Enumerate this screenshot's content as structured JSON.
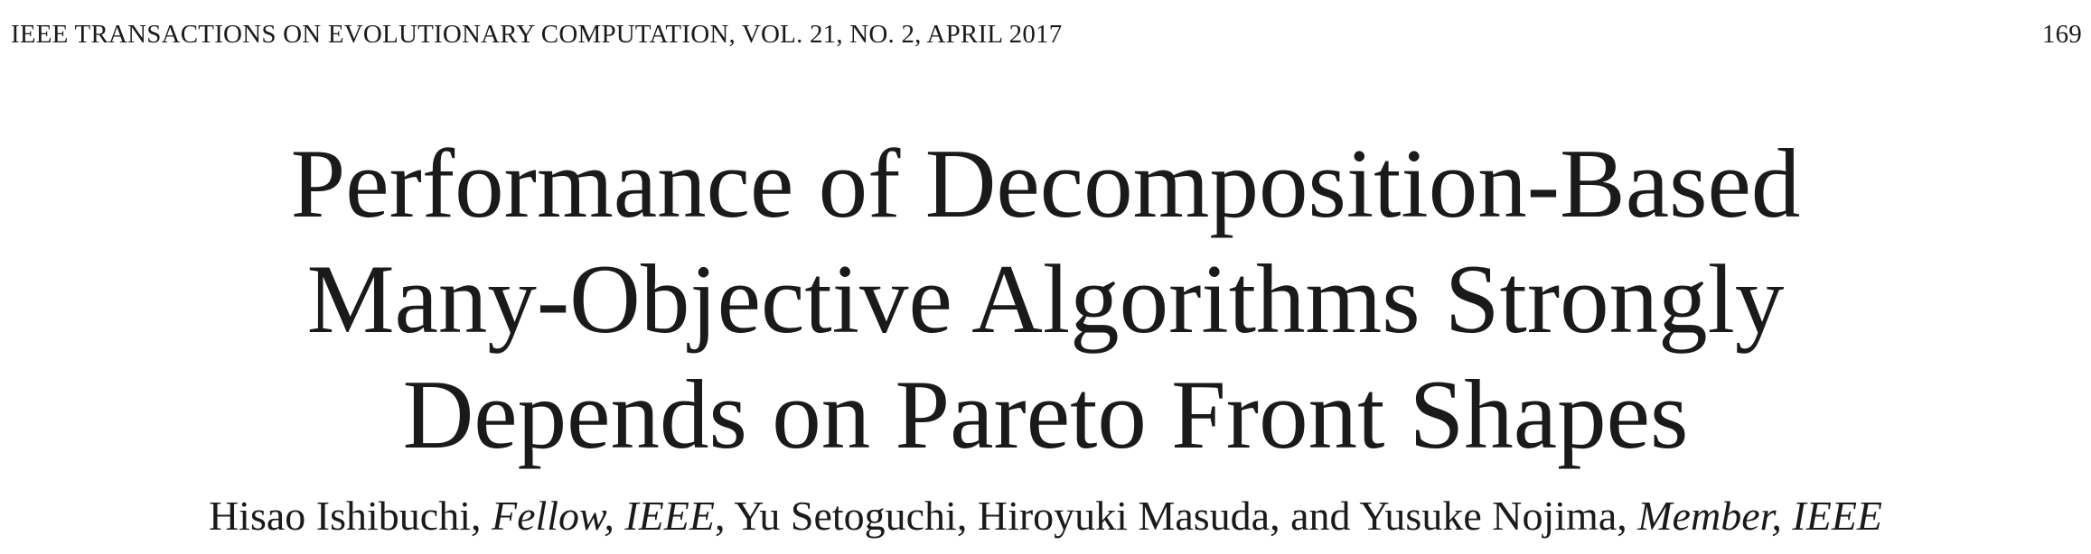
{
  "header": {
    "journal_line": "IEEE TRANSACTIONS ON EVOLUTIONARY COMPUTATION, VOL. 21, NO. 2, APRIL 2017",
    "page_number": "169"
  },
  "title": {
    "lines": [
      "Performance of Decomposition-Based",
      "Many-Objective Algorithms Strongly",
      "Depends on Pareto Front Shapes"
    ]
  },
  "authors": {
    "author1": "Hisao Ishibuchi",
    "author1_grade": "Fellow, IEEE",
    "author2": "Yu Setoguchi",
    "author3": "Hiroyuki Masuda",
    "author4": "Yusuke Nojima",
    "author4_grade": "Member, IEEE",
    "sep_comma": ", ",
    "sep_and": ", and "
  }
}
